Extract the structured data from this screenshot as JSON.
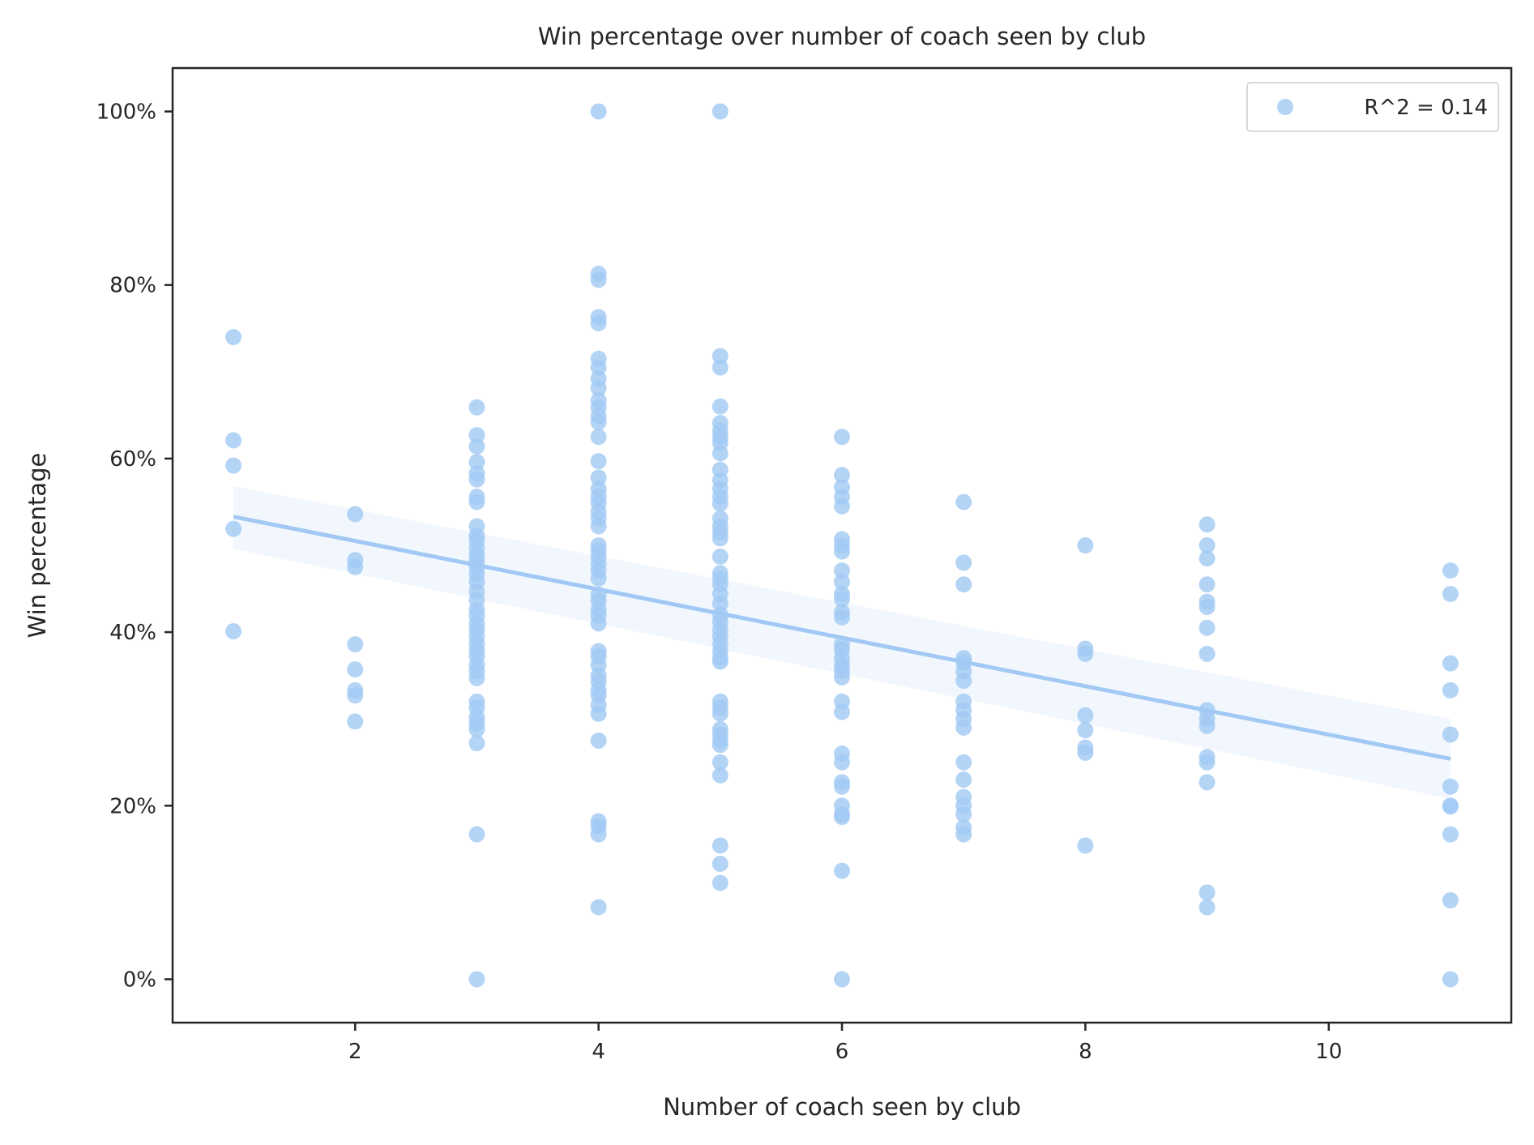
{
  "chart_data": {
    "type": "scatter",
    "title": "Win percentage over number of coach seen by club",
    "xlabel": "Number of coach seen by club",
    "ylabel": "Win percentage",
    "xlim": [
      0.5,
      11.5
    ],
    "ylim": [
      -0.05,
      1.05
    ],
    "x_ticks": [
      2,
      4,
      6,
      8,
      10
    ],
    "y_ticks": [
      0,
      0.2,
      0.4,
      0.6,
      0.8,
      1.0
    ],
    "y_tick_labels": [
      "0%",
      "20%",
      "40%",
      "60%",
      "80%",
      "100%"
    ],
    "grid": false,
    "legend": {
      "position": "top-right",
      "entries": [
        "R^2 = 0.14"
      ]
    },
    "colors": {
      "points": "#a1c9f4",
      "line": "#a1c9f4",
      "band": "#a1c9f4",
      "axes": "#262626"
    },
    "regression": {
      "x": [
        1,
        11
      ],
      "y": [
        0.533,
        0.254
      ],
      "ci_low_start": 0.496,
      "ci_high_start": 0.568,
      "ci_low_end": 0.208,
      "ci_high_end": 0.3
    },
    "series": [
      {
        "name": "R^2 = 0.14",
        "points": [
          [
            1,
            0.74
          ],
          [
            1,
            0.621
          ],
          [
            1,
            0.592
          ],
          [
            1,
            0.519
          ],
          [
            1,
            0.401
          ],
          [
            2,
            0.536
          ],
          [
            2,
            0.483
          ],
          [
            2,
            0.475
          ],
          [
            2,
            0.386
          ],
          [
            2,
            0.357
          ],
          [
            2,
            0.333
          ],
          [
            2,
            0.327
          ],
          [
            2,
            0.297
          ],
          [
            3,
            0.659
          ],
          [
            3,
            0.627
          ],
          [
            3,
            0.614
          ],
          [
            3,
            0.596
          ],
          [
            3,
            0.583
          ],
          [
            3,
            0.576
          ],
          [
            3,
            0.556
          ],
          [
            3,
            0.55
          ],
          [
            3,
            0.522
          ],
          [
            3,
            0.511
          ],
          [
            3,
            0.505
          ],
          [
            3,
            0.496
          ],
          [
            3,
            0.488
          ],
          [
            3,
            0.482
          ],
          [
            3,
            0.475
          ],
          [
            3,
            0.467
          ],
          [
            3,
            0.458
          ],
          [
            3,
            0.447
          ],
          [
            3,
            0.437
          ],
          [
            3,
            0.426
          ],
          [
            3,
            0.419
          ],
          [
            3,
            0.41
          ],
          [
            3,
            0.403
          ],
          [
            3,
            0.395
          ],
          [
            3,
            0.387
          ],
          [
            3,
            0.379
          ],
          [
            3,
            0.372
          ],
          [
            3,
            0.362
          ],
          [
            3,
            0.355
          ],
          [
            3,
            0.347
          ],
          [
            3,
            0.32
          ],
          [
            3,
            0.313
          ],
          [
            3,
            0.302
          ],
          [
            3,
            0.295
          ],
          [
            3,
            0.288
          ],
          [
            3,
            0.272
          ],
          [
            3,
            0.167
          ],
          [
            3,
            0.0
          ],
          [
            4,
            1.0
          ],
          [
            4,
            0.813
          ],
          [
            4,
            0.806
          ],
          [
            4,
            0.763
          ],
          [
            4,
            0.756
          ],
          [
            4,
            0.715
          ],
          [
            4,
            0.705
          ],
          [
            4,
            0.692
          ],
          [
            4,
            0.681
          ],
          [
            4,
            0.667
          ],
          [
            4,
            0.659
          ],
          [
            4,
            0.649
          ],
          [
            4,
            0.642
          ],
          [
            4,
            0.625
          ],
          [
            4,
            0.597
          ],
          [
            4,
            0.578
          ],
          [
            4,
            0.565
          ],
          [
            4,
            0.556
          ],
          [
            4,
            0.549
          ],
          [
            4,
            0.539
          ],
          [
            4,
            0.531
          ],
          [
            4,
            0.522
          ],
          [
            4,
            0.5
          ],
          [
            4,
            0.494
          ],
          [
            4,
            0.487
          ],
          [
            4,
            0.479
          ],
          [
            4,
            0.471
          ],
          [
            4,
            0.462
          ],
          [
            4,
            0.443
          ],
          [
            4,
            0.436
          ],
          [
            4,
            0.426
          ],
          [
            4,
            0.419
          ],
          [
            4,
            0.41
          ],
          [
            4,
            0.378
          ],
          [
            4,
            0.372
          ],
          [
            4,
            0.362
          ],
          [
            4,
            0.35
          ],
          [
            4,
            0.343
          ],
          [
            4,
            0.333
          ],
          [
            4,
            0.327
          ],
          [
            4,
            0.316
          ],
          [
            4,
            0.306
          ],
          [
            4,
            0.275
          ],
          [
            4,
            0.182
          ],
          [
            4,
            0.176
          ],
          [
            4,
            0.167
          ],
          [
            4,
            0.083
          ],
          [
            5,
            1.0
          ],
          [
            5,
            0.718
          ],
          [
            5,
            0.705
          ],
          [
            5,
            0.66
          ],
          [
            5,
            0.641
          ],
          [
            5,
            0.632
          ],
          [
            5,
            0.625
          ],
          [
            5,
            0.618
          ],
          [
            5,
            0.606
          ],
          [
            5,
            0.587
          ],
          [
            5,
            0.575
          ],
          [
            5,
            0.565
          ],
          [
            5,
            0.556
          ],
          [
            5,
            0.548
          ],
          [
            5,
            0.531
          ],
          [
            5,
            0.522
          ],
          [
            5,
            0.515
          ],
          [
            5,
            0.508
          ],
          [
            5,
            0.487
          ],
          [
            5,
            0.468
          ],
          [
            5,
            0.462
          ],
          [
            5,
            0.455
          ],
          [
            5,
            0.444
          ],
          [
            5,
            0.433
          ],
          [
            5,
            0.42
          ],
          [
            5,
            0.412
          ],
          [
            5,
            0.403
          ],
          [
            5,
            0.395
          ],
          [
            5,
            0.386
          ],
          [
            5,
            0.378
          ],
          [
            5,
            0.37
          ],
          [
            5,
            0.366
          ],
          [
            5,
            0.32
          ],
          [
            5,
            0.313
          ],
          [
            5,
            0.306
          ],
          [
            5,
            0.288
          ],
          [
            5,
            0.282
          ],
          [
            5,
            0.275
          ],
          [
            5,
            0.27
          ],
          [
            5,
            0.25
          ],
          [
            5,
            0.235
          ],
          [
            5,
            0.154
          ],
          [
            5,
            0.133
          ],
          [
            5,
            0.111
          ],
          [
            6,
            0.625
          ],
          [
            6,
            0.581
          ],
          [
            6,
            0.567
          ],
          [
            6,
            0.556
          ],
          [
            6,
            0.545
          ],
          [
            6,
            0.507
          ],
          [
            6,
            0.5
          ],
          [
            6,
            0.493
          ],
          [
            6,
            0.471
          ],
          [
            6,
            0.458
          ],
          [
            6,
            0.444
          ],
          [
            6,
            0.438
          ],
          [
            6,
            0.423
          ],
          [
            6,
            0.417
          ],
          [
            6,
            0.386
          ],
          [
            6,
            0.38
          ],
          [
            6,
            0.37
          ],
          [
            6,
            0.362
          ],
          [
            6,
            0.355
          ],
          [
            6,
            0.348
          ],
          [
            6,
            0.32
          ],
          [
            6,
            0.308
          ],
          [
            6,
            0.26
          ],
          [
            6,
            0.25
          ],
          [
            6,
            0.227
          ],
          [
            6,
            0.222
          ],
          [
            6,
            0.2
          ],
          [
            6,
            0.19
          ],
          [
            6,
            0.187
          ],
          [
            6,
            0.125
          ],
          [
            6,
            0.0
          ],
          [
            7,
            0.55
          ],
          [
            7,
            0.48
          ],
          [
            7,
            0.455
          ],
          [
            7,
            0.37
          ],
          [
            7,
            0.365
          ],
          [
            7,
            0.355
          ],
          [
            7,
            0.344
          ],
          [
            7,
            0.32
          ],
          [
            7,
            0.31
          ],
          [
            7,
            0.3
          ],
          [
            7,
            0.29
          ],
          [
            7,
            0.25
          ],
          [
            7,
            0.23
          ],
          [
            7,
            0.21
          ],
          [
            7,
            0.2
          ],
          [
            7,
            0.19
          ],
          [
            7,
            0.175
          ],
          [
            7,
            0.167
          ],
          [
            8,
            0.5
          ],
          [
            8,
            0.381
          ],
          [
            8,
            0.375
          ],
          [
            8,
            0.304
          ],
          [
            8,
            0.287
          ],
          [
            8,
            0.267
          ],
          [
            8,
            0.261
          ],
          [
            8,
            0.154
          ],
          [
            9,
            0.524
          ],
          [
            9,
            0.5
          ],
          [
            9,
            0.485
          ],
          [
            9,
            0.455
          ],
          [
            9,
            0.435
          ],
          [
            9,
            0.429
          ],
          [
            9,
            0.405
          ],
          [
            9,
            0.375
          ],
          [
            9,
            0.31
          ],
          [
            9,
            0.3
          ],
          [
            9,
            0.292
          ],
          [
            9,
            0.256
          ],
          [
            9,
            0.25
          ],
          [
            9,
            0.227
          ],
          [
            9,
            0.1
          ],
          [
            9,
            0.083
          ],
          [
            11,
            0.471
          ],
          [
            11,
            0.444
          ],
          [
            11,
            0.364
          ],
          [
            11,
            0.333
          ],
          [
            11,
            0.282
          ],
          [
            11,
            0.222
          ],
          [
            11,
            0.2
          ],
          [
            11,
            0.199
          ],
          [
            11,
            0.167
          ],
          [
            11,
            0.091
          ],
          [
            11,
            0.0
          ]
        ]
      }
    ]
  }
}
